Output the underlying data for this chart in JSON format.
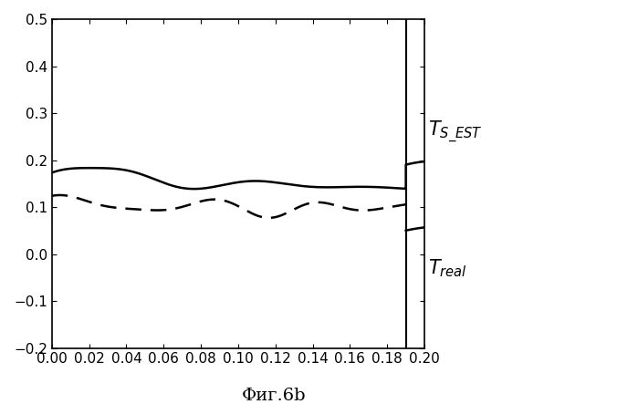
{
  "title": "Фиг.6b",
  "xlim": [
    0,
    0.2
  ],
  "ylim": [
    -0.2,
    0.5
  ],
  "xticks": [
    0,
    0.02,
    0.04,
    0.06,
    0.08,
    0.1,
    0.12,
    0.14,
    0.16,
    0.18,
    0.2
  ],
  "yticks": [
    -0.2,
    -0.1,
    0,
    0.1,
    0.2,
    0.3,
    0.4,
    0.5
  ],
  "vertical_line_x": 0.19,
  "line_color": "#000000",
  "background": "#ffffff",
  "s_est_base": 0.155,
  "t_real_base": 0.105,
  "s_est_after_base": 0.2,
  "t_real_after_base": 0.04
}
